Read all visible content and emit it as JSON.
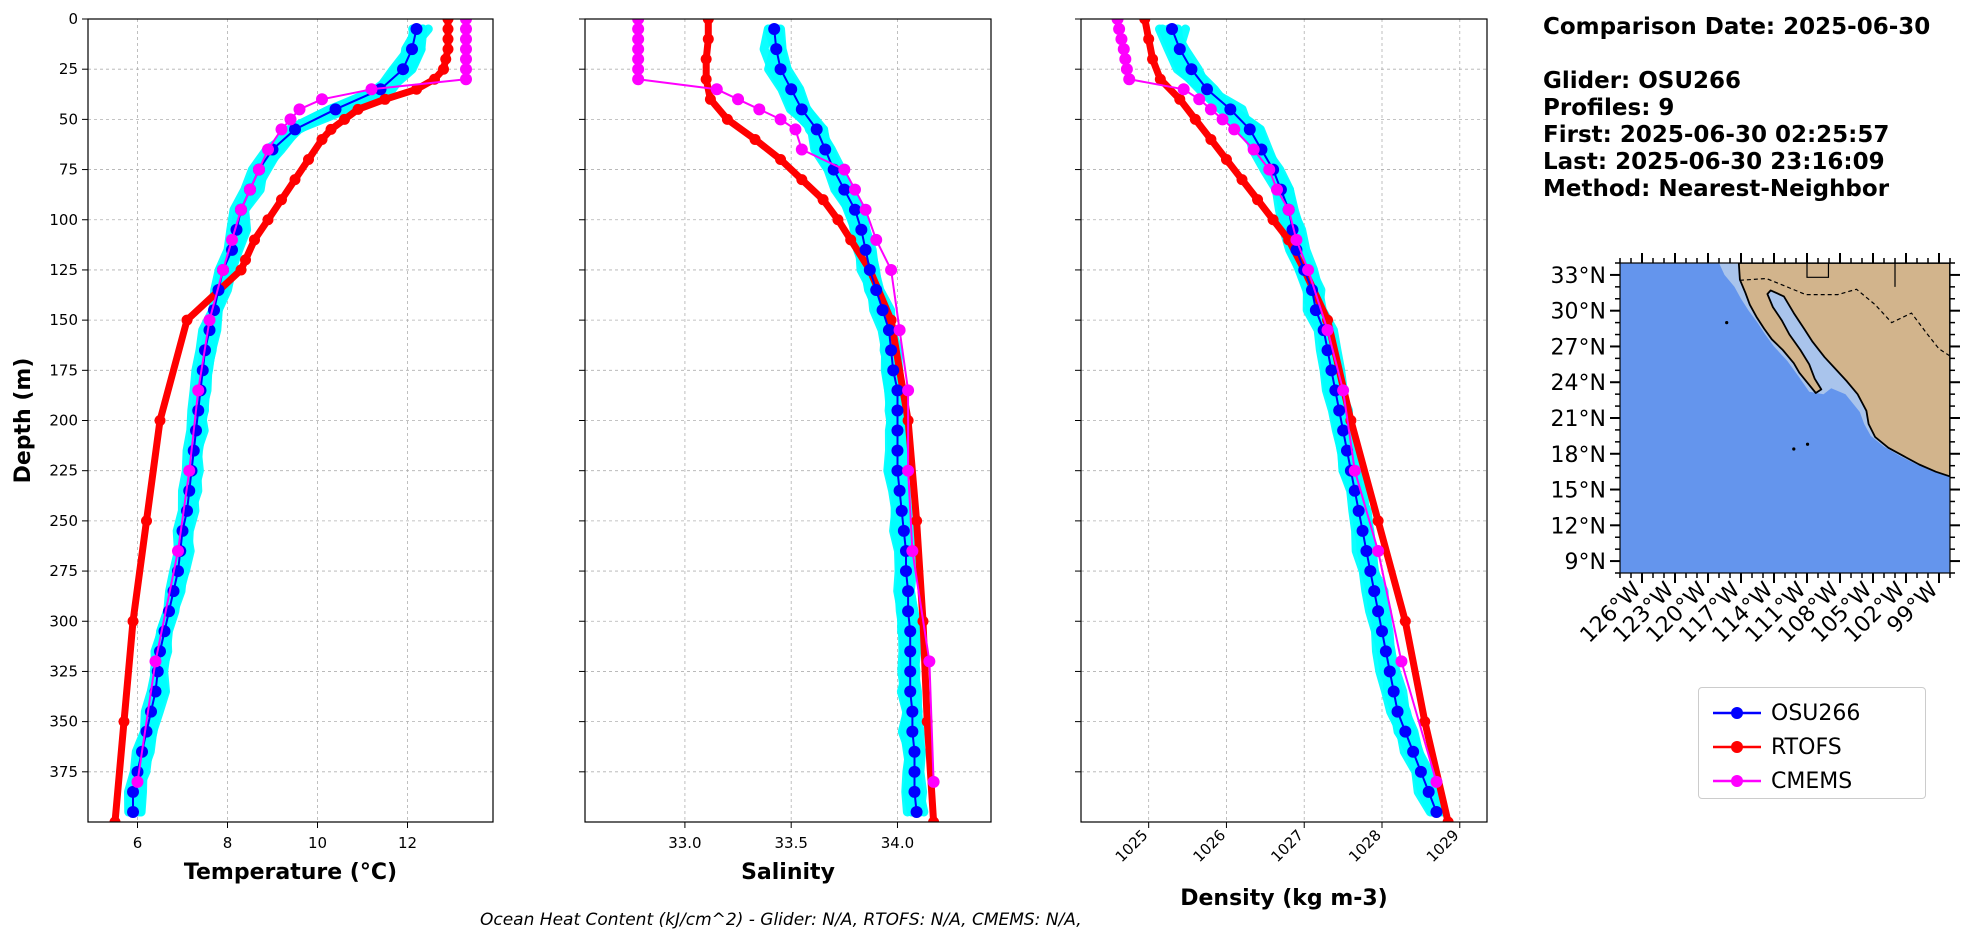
{
  "info": {
    "comparison_date": "Comparison Date: 2025-06-30",
    "glider": "Glider: OSU266",
    "profiles": "Profiles: 9",
    "first": "First: 2025-06-30 02:25:57",
    "last": "Last: 2025-06-30 23:16:09",
    "method": "Method: Nearest-Neighbor"
  },
  "footer": "Ocean Heat Content (kJ/cm^2) - Glider: N/A,  RTOFS: N/A,  CMEMS: N/A,",
  "legend": [
    {
      "label": "OSU266",
      "color": "#0000ff"
    },
    {
      "label": "RTOFS",
      "color": "#ff0000"
    },
    {
      "label": "CMEMS",
      "color": "#ff00ff"
    }
  ],
  "colors": {
    "glider_profiles": "#00ffff",
    "grid": "#b0b0b0",
    "land": "#d2b48c",
    "ocean": "#6495ed",
    "shelf": "#a9c4ec"
  },
  "chart_data": [
    {
      "type": "line",
      "xlabel": "Temperature (°C)",
      "ylabel": "Depth (m)",
      "xlim": [
        4.9,
        13.9
      ],
      "ylim": [
        400,
        0
      ],
      "xticks": [
        6,
        8,
        10,
        12
      ],
      "yticks": [
        0,
        25,
        50,
        75,
        100,
        125,
        150,
        175,
        200,
        225,
        250,
        275,
        300,
        325,
        350,
        375
      ],
      "grid": true,
      "series": [
        {
          "name": "OSU266",
          "color": "#0000ff",
          "marker": "circle",
          "depth": [
            5,
            15,
            25,
            35,
            45,
            55,
            65,
            75,
            85,
            95,
            105,
            115,
            125,
            135,
            145,
            155,
            165,
            175,
            185,
            195,
            205,
            215,
            225,
            235,
            245,
            255,
            265,
            275,
            285,
            295,
            305,
            315,
            325,
            335,
            345,
            355,
            365,
            375,
            385,
            395
          ],
          "values": [
            12.2,
            12.1,
            11.9,
            11.4,
            10.4,
            9.5,
            9.0,
            8.7,
            8.5,
            8.3,
            8.2,
            8.1,
            7.9,
            7.8,
            7.7,
            7.6,
            7.5,
            7.45,
            7.4,
            7.35,
            7.3,
            7.25,
            7.2,
            7.15,
            7.1,
            7.0,
            6.95,
            6.9,
            6.8,
            6.7,
            6.6,
            6.5,
            6.45,
            6.4,
            6.3,
            6.2,
            6.1,
            6.0,
            5.9,
            5.9
          ]
        },
        {
          "name": "RTOFS",
          "color": "#ff0000",
          "marker": "circle",
          "depth": [
            0,
            5,
            10,
            15,
            20,
            25,
            30,
            35,
            40,
            45,
            50,
            55,
            60,
            70,
            80,
            90,
            100,
            110,
            120,
            125,
            150,
            200,
            250,
            300,
            350,
            400
          ],
          "values": [
            12.9,
            12.9,
            12.9,
            12.9,
            12.85,
            12.8,
            12.6,
            12.2,
            11.5,
            10.9,
            10.6,
            10.3,
            10.1,
            9.8,
            9.5,
            9.2,
            8.9,
            8.6,
            8.4,
            8.3,
            7.1,
            6.5,
            6.2,
            5.9,
            5.7,
            5.5
          ]
        },
        {
          "name": "CMEMS",
          "color": "#ff00ff",
          "marker": "circle",
          "depth": [
            0,
            5,
            10,
            15,
            20,
            25,
            30,
            35,
            40,
            45,
            50,
            55,
            65,
            75,
            85,
            95,
            110,
            125,
            150,
            185,
            225,
            265,
            320,
            380
          ],
          "values": [
            13.3,
            13.3,
            13.3,
            13.3,
            13.3,
            13.3,
            13.3,
            11.2,
            10.1,
            9.6,
            9.4,
            9.2,
            8.9,
            8.7,
            8.5,
            8.3,
            8.1,
            7.9,
            7.6,
            7.35,
            7.15,
            6.9,
            6.4,
            6.0
          ]
        }
      ]
    },
    {
      "type": "line",
      "xlabel": "Salinity",
      "xlim": [
        32.53,
        34.44
      ],
      "ylim": [
        400,
        0
      ],
      "xticks": [
        33.0,
        33.5,
        34.0
      ],
      "xticklabels": [
        "33.0",
        "33.5",
        "34.0"
      ],
      "grid": true,
      "series": [
        {
          "name": "OSU266",
          "color": "#0000ff",
          "marker": "circle",
          "depth": [
            5,
            15,
            25,
            35,
            45,
            55,
            65,
            75,
            85,
            95,
            105,
            115,
            125,
            135,
            145,
            155,
            165,
            175,
            185,
            195,
            205,
            215,
            225,
            235,
            245,
            255,
            265,
            275,
            285,
            295,
            305,
            315,
            325,
            335,
            345,
            355,
            365,
            375,
            385,
            395
          ],
          "values": [
            33.42,
            33.43,
            33.45,
            33.5,
            33.55,
            33.62,
            33.66,
            33.7,
            33.75,
            33.8,
            33.83,
            33.85,
            33.87,
            33.9,
            33.93,
            33.96,
            33.97,
            33.98,
            34.0,
            34.0,
            34.0,
            34.0,
            34.0,
            34.01,
            34.02,
            34.03,
            34.04,
            34.04,
            34.05,
            34.05,
            34.06,
            34.06,
            34.06,
            34.06,
            34.07,
            34.07,
            34.08,
            34.08,
            34.08,
            34.09
          ]
        },
        {
          "name": "RTOFS",
          "color": "#ff0000",
          "marker": "circle",
          "depth": [
            0,
            10,
            20,
            30,
            40,
            50,
            60,
            70,
            80,
            90,
            100,
            110,
            125,
            150,
            200,
            250,
            300,
            350,
            400
          ],
          "values": [
            33.11,
            33.11,
            33.1,
            33.1,
            33.12,
            33.2,
            33.33,
            33.45,
            33.55,
            33.65,
            33.72,
            33.78,
            33.87,
            33.97,
            34.05,
            34.09,
            34.12,
            34.14,
            34.17
          ]
        },
        {
          "name": "CMEMS",
          "color": "#ff00ff",
          "marker": "circle",
          "depth": [
            0,
            5,
            10,
            15,
            20,
            25,
            30,
            35,
            40,
            45,
            50,
            55,
            65,
            75,
            85,
            95,
            110,
            125,
            155,
            185,
            225,
            265,
            320,
            380
          ],
          "values": [
            32.78,
            32.78,
            32.78,
            32.78,
            32.78,
            32.78,
            32.78,
            33.15,
            33.25,
            33.35,
            33.45,
            33.52,
            33.55,
            33.75,
            33.8,
            33.85,
            33.9,
            33.97,
            34.01,
            34.05,
            34.05,
            34.07,
            34.15,
            34.17
          ]
        }
      ]
    },
    {
      "type": "line",
      "xlabel": "Density (kg m-3)",
      "xlim": [
        1024.13,
        1029.35
      ],
      "ylim": [
        400,
        0
      ],
      "xticks": [
        1025,
        1026,
        1027,
        1028,
        1029
      ],
      "xticklabels": [
        "1025",
        "1026",
        "1027",
        "1028",
        "1029"
      ],
      "grid": true,
      "series": [
        {
          "name": "OSU266",
          "color": "#0000ff",
          "marker": "circle",
          "depth": [
            5,
            15,
            25,
            35,
            45,
            55,
            65,
            75,
            85,
            95,
            105,
            115,
            125,
            135,
            145,
            155,
            165,
            175,
            185,
            195,
            205,
            215,
            225,
            235,
            245,
            255,
            265,
            275,
            285,
            295,
            305,
            315,
            325,
            335,
            345,
            355,
            365,
            375,
            385,
            395
          ],
          "values": [
            1025.3,
            1025.4,
            1025.55,
            1025.75,
            1026.05,
            1026.3,
            1026.45,
            1026.6,
            1026.7,
            1026.8,
            1026.85,
            1026.9,
            1027.0,
            1027.1,
            1027.15,
            1027.25,
            1027.3,
            1027.35,
            1027.4,
            1027.45,
            1027.5,
            1027.55,
            1027.6,
            1027.65,
            1027.7,
            1027.75,
            1027.8,
            1027.85,
            1027.9,
            1027.95,
            1028.0,
            1028.05,
            1028.1,
            1028.15,
            1028.2,
            1028.3,
            1028.4,
            1028.5,
            1028.6,
            1028.7
          ]
        },
        {
          "name": "RTOFS",
          "color": "#ff0000",
          "marker": "circle",
          "depth": [
            0,
            10,
            20,
            30,
            40,
            50,
            60,
            70,
            80,
            90,
            100,
            110,
            125,
            150,
            200,
            250,
            300,
            350,
            400
          ],
          "values": [
            1024.95,
            1025.0,
            1025.05,
            1025.15,
            1025.4,
            1025.6,
            1025.8,
            1026.0,
            1026.2,
            1026.4,
            1026.6,
            1026.8,
            1027.0,
            1027.3,
            1027.6,
            1027.95,
            1028.3,
            1028.55,
            1028.85
          ]
        },
        {
          "name": "CMEMS",
          "color": "#ff00ff",
          "marker": "circle",
          "depth": [
            0,
            5,
            10,
            15,
            20,
            25,
            30,
            35,
            40,
            45,
            50,
            55,
            65,
            75,
            85,
            95,
            110,
            125,
            155,
            185,
            225,
            265,
            320,
            380
          ],
          "values": [
            1024.6,
            1024.62,
            1024.65,
            1024.68,
            1024.7,
            1024.72,
            1024.75,
            1025.45,
            1025.65,
            1025.8,
            1025.95,
            1026.1,
            1026.35,
            1026.55,
            1026.65,
            1026.8,
            1026.9,
            1027.05,
            1027.3,
            1027.5,
            1027.65,
            1027.95,
            1028.25,
            1028.7
          ]
        }
      ]
    }
  ],
  "map": {
    "lat_ticks": [
      "33°N",
      "30°N",
      "27°N",
      "24°N",
      "21°N",
      "18°N",
      "15°N",
      "12°N",
      "9°N"
    ],
    "lon_ticks": [
      "126°W",
      "123°W",
      "120°W",
      "117°W",
      "114°W",
      "111°W",
      "108°W",
      "105°W",
      "102°W",
      "99°W"
    ],
    "lat_values": [
      33,
      30,
      27,
      24,
      21,
      18,
      15,
      12,
      9
    ],
    "lon_values": [
      -126,
      -123,
      -120,
      -117,
      -114,
      -111,
      -108,
      -105,
      -102,
      -99
    ]
  }
}
